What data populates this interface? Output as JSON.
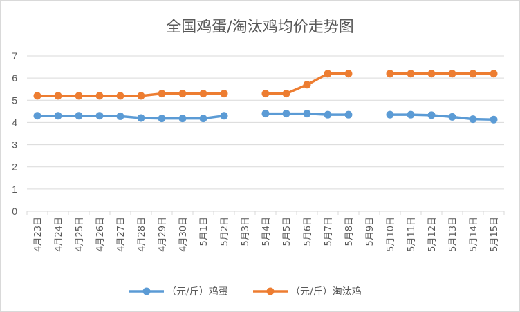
{
  "chart_data": {
    "type": "line",
    "title": "全国鸡蛋/淘汰鸡均价走势图",
    "xlabel": "",
    "ylabel": "",
    "ylim": [
      0,
      7
    ],
    "yticks": [
      0,
      1,
      2,
      3,
      4,
      5,
      6,
      7
    ],
    "grid": true,
    "legend_position": "bottom",
    "categories": [
      "4月23日",
      "4月24日",
      "4月25日",
      "4月26日",
      "4月27日",
      "4月28日",
      "4月29日",
      "4月30日",
      "5月1日",
      "5月2日",
      "5月3日",
      "5月4日",
      "5月5日",
      "5月6日",
      "5月7日",
      "5月8日",
      "5月9日",
      "5月10日",
      "5月11日",
      "5月12日",
      "5月13日",
      "5月14日",
      "5月15日"
    ],
    "series": [
      {
        "name": "（元/斤）鸡蛋",
        "color": "#5b9bd5",
        "values": [
          4.3,
          4.3,
          4.3,
          4.3,
          4.28,
          4.2,
          4.18,
          4.18,
          4.18,
          4.3,
          null,
          4.4,
          4.4,
          4.4,
          4.35,
          4.35,
          null,
          4.35,
          4.35,
          4.33,
          4.25,
          4.15,
          4.13
        ]
      },
      {
        "name": "（元/斤）淘汰鸡",
        "color": "#ed7d31",
        "values": [
          5.2,
          5.2,
          5.2,
          5.2,
          5.2,
          5.2,
          5.3,
          5.3,
          5.3,
          5.3,
          null,
          5.3,
          5.3,
          5.7,
          6.2,
          6.2,
          null,
          6.2,
          6.2,
          6.2,
          6.2,
          6.2,
          6.2
        ]
      }
    ]
  }
}
